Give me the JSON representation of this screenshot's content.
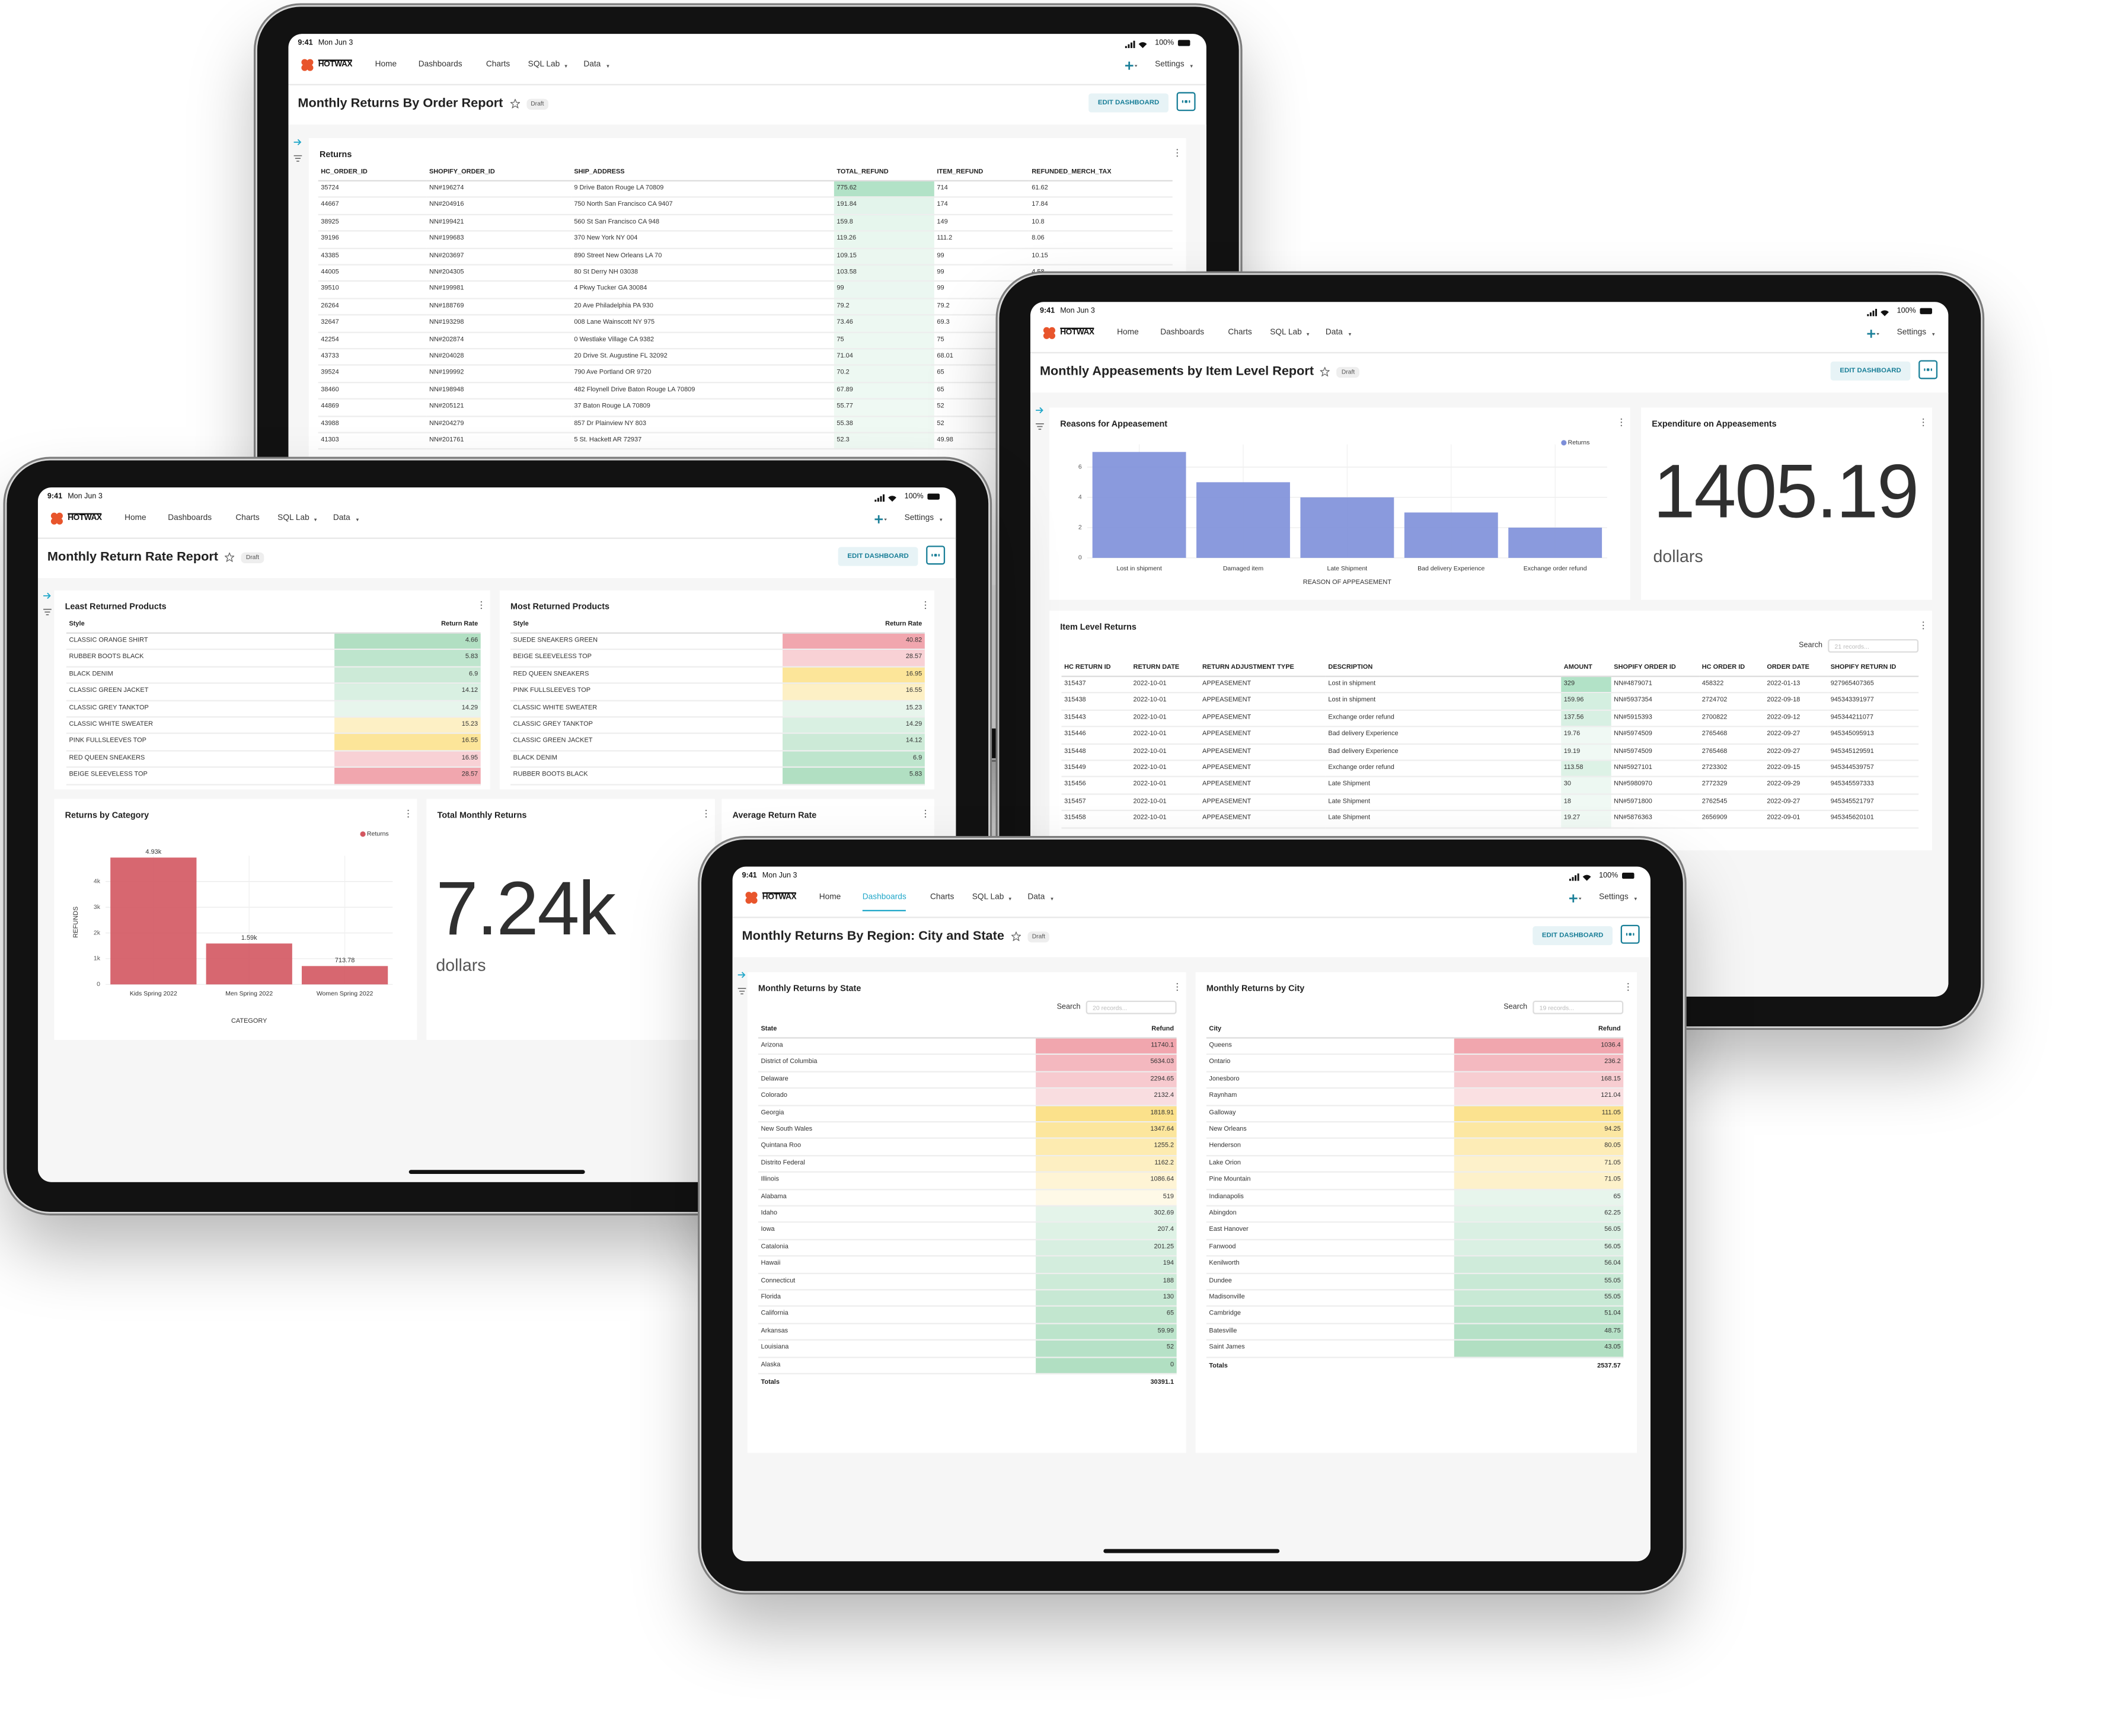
{
  "status": {
    "time": "9:41",
    "date": "Mon Jun 3",
    "battery": "100%"
  },
  "nav": {
    "brand": "HOTWAX",
    "items": [
      "Home",
      "Dashboards",
      "Charts",
      "SQL Lab",
      "Data"
    ],
    "settings": "Settings"
  },
  "badge": "Draft",
  "edit": "EDIT DASHBOARD",
  "dashboards": [
    {
      "title": "Monthly Returns By Order Report",
      "panels": [
        {
          "kind": "table",
          "title": "Returns",
          "columns": [
            "HC_ORDER_ID",
            "SHOPIFY_ORDER_ID",
            "SHIP_ADDRESS",
            "TOTAL_REFUND",
            "ITEM_REFUND",
            "REFUNDED_MERCH_TAX"
          ],
          "heat": "green",
          "heat_column": 3,
          "rows": [
            [
              35724,
              "NN#196274",
              "9 Drive Baton Rouge LA 70809",
              775.62,
              714,
              61.62
            ],
            [
              44667,
              "NN#204916",
              "750 North San Francisco CA 9407",
              191.84,
              174,
              17.84
            ],
            [
              38925,
              "NN#199421",
              "560 St San Francisco CA 948",
              159.8,
              149,
              10.8
            ],
            [
              39196,
              "NN#199683",
              "370 New York NY 004",
              119.26,
              111.2,
              8.06
            ],
            [
              43385,
              "NN#203697",
              "890 Street New Orleans LA 70",
              109.15,
              99,
              10.15
            ],
            [
              44005,
              "NN#204305",
              "80 St Derry NH 03038",
              103.58,
              99,
              4.58
            ],
            [
              39510,
              "NN#199981",
              "4 Pkwy Tucker GA 30084",
              99,
              99,
              null
            ],
            [
              26264,
              "NN#188769",
              "20 Ave Philadelphia PA 930",
              79.2,
              79.2,
              null
            ],
            [
              32647,
              "NN#193298",
              "008 Lane Wainscott NY 975",
              73.46,
              69.3,
              null
            ],
            [
              42254,
              "NN#202874",
              "0 Westlake Village CA 9382",
              75,
              75,
              null
            ],
            [
              43733,
              "NN#204028",
              "20 Drive St. Augustine FL 32092",
              71.04,
              68.01,
              null
            ],
            [
              39524,
              "NN#199992",
              "790 Ave Portland OR 9720",
              70.2,
              65,
              null
            ],
            [
              38460,
              "NN#198948",
              "482 Floynell Drive Baton Rouge LA 70809",
              67.89,
              65,
              null
            ],
            [
              44869,
              "NN#205121",
              "37 Baton Rouge LA 70809",
              55.77,
              52,
              null
            ],
            [
              43988,
              "NN#204279",
              "857 Dr Plainview NY 803",
              55.38,
              52,
              null
            ],
            [
              41303,
              "NN#201761",
              "5 St. Hackett AR 72937",
              52.3,
              49.98,
              null
            ]
          ]
        }
      ]
    },
    {
      "title": "Monthly Appeasements by Item Level Report",
      "panels": [
        {
          "kind": "chart",
          "chart_data": {
            "type": "bar",
            "title": "Reasons for Appeasement",
            "categories": [
              "Lost in shipment",
              "Damaged item",
              "Late Shipment",
              "Bad delivery Experience",
              "Exchange order refund"
            ],
            "series": [
              {
                "name": "Returns",
                "color": "#7d8fd9",
                "values": [
                  7,
                  5,
                  4,
                  3,
                  2
                ]
              }
            ],
            "xlabel": "REASON OF APPEASEMENT",
            "ylim": [
              0,
              7.5
            ],
            "yticks": [
              0,
              2,
              4,
              6
            ],
            "grid": true,
            "legend": "top-right"
          }
        },
        {
          "kind": "number",
          "title": "Expenditure on Appeasements",
          "value": 1405.19,
          "subtitle": "dollars"
        },
        {
          "kind": "table",
          "title": "Item Level Returns",
          "search": {
            "label": "Search",
            "placeholder": "21 records..."
          },
          "columns": [
            "HC RETURN ID",
            "RETURN DATE",
            "RETURN ADJUSTMENT TYPE",
            "DESCRIPTION",
            "AMOUNT",
            "SHOPIFY ORDER ID",
            "HC ORDER ID",
            "ORDER DATE",
            "SHOPIFY RETURN ID"
          ],
          "heat": "green",
          "heat_column": 4,
          "rows": [
            [
              315437,
              "2022-10-01",
              "APPEASEMENT",
              "Lost in shipment",
              329,
              "NN#4879071",
              458322,
              "2022-01-13",
              927965407365
            ],
            [
              315438,
              "2022-10-01",
              "APPEASEMENT",
              "Lost in shipment",
              159.96,
              "NN#5937354",
              2724702,
              "2022-09-18",
              945343391977
            ],
            [
              315443,
              "2022-10-01",
              "APPEASEMENT",
              "Exchange order refund",
              137.56,
              "NN#5915393",
              2700822,
              "2022-09-12",
              945344211077
            ],
            [
              315446,
              "2022-10-01",
              "APPEASEMENT",
              "Bad delivery Experience",
              19.76,
              "NN#5974509",
              2765468,
              "2022-09-27",
              945345095913
            ],
            [
              315448,
              "2022-10-01",
              "APPEASEMENT",
              "Bad delivery Experience",
              19.19,
              "NN#5974509",
              2765468,
              "2022-09-27",
              945345129591
            ],
            [
              315449,
              "2022-10-01",
              "APPEASEMENT",
              "Exchange order refund",
              113.58,
              "NN#5927101",
              2723302,
              "2022-09-15",
              945344539757
            ],
            [
              315456,
              "2022-10-01",
              "APPEASEMENT",
              "Late Shipment",
              30,
              "NN#5980970",
              2772329,
              "2022-09-29",
              945345597333
            ],
            [
              315457,
              "2022-10-01",
              "APPEASEMENT",
              "Late Shipment",
              18,
              "NN#5971800",
              2762545,
              "2022-09-27",
              945345521797
            ],
            [
              315458,
              "2022-10-01",
              "APPEASEMENT",
              "Late Shipment",
              19.27,
              "NN#5876363",
              2656909,
              "2022-09-01",
              945345620101
            ]
          ]
        }
      ]
    },
    {
      "title": "Monthly Return Rate Report",
      "panels": [
        {
          "kind": "table",
          "title": "Least Returned Products",
          "columns": [
            "Style",
            "Return Rate"
          ],
          "heat": "rank",
          "heat_column": 1,
          "rows": [
            [
              "CLASSIC ORANGE SHIRT",
              4.66
            ],
            [
              "RUBBER BOOTS BLACK",
              5.83
            ],
            [
              "BLACK DENIM",
              6.9
            ],
            [
              "CLASSIC GREEN JACKET",
              14.12
            ],
            [
              "CLASSIC GREY TANKTOP",
              14.29
            ],
            [
              "CLASSIC WHITE SWEATER",
              15.23
            ],
            [
              "PINK FULLSLEEVES TOP",
              16.55
            ],
            [
              "RED QUEEN SNEAKERS",
              16.95
            ],
            [
              "BEIGE SLEEVELESS TOP",
              28.57
            ]
          ]
        },
        {
          "kind": "table",
          "title": "Most Returned Products",
          "columns": [
            "Style",
            "Return Rate"
          ],
          "heat": "rank",
          "heat_column": 1,
          "rows": [
            [
              "SUEDE SNEAKERS GREEN",
              40.82
            ],
            [
              "BEIGE SLEEVELESS TOP",
              28.57
            ],
            [
              "RED QUEEN SNEAKERS",
              16.95
            ],
            [
              "PINK FULLSLEEVES TOP",
              16.55
            ],
            [
              "CLASSIC WHITE SWEATER",
              15.23
            ],
            [
              "CLASSIC GREY TANKTOP",
              14.29
            ],
            [
              "CLASSIC GREEN JACKET",
              14.12
            ],
            [
              "BLACK DENIM",
              6.9
            ],
            [
              "RUBBER BOOTS BLACK",
              5.83
            ]
          ]
        },
        {
          "kind": "chart",
          "chart_data": {
            "type": "bar",
            "title": "Returns by Category",
            "categories": [
              "Kids Spring 2022",
              "Men Spring 2022",
              "Women Spring 2022"
            ],
            "series": [
              {
                "name": "Returns",
                "color": "#d35760",
                "values": [
                  4930,
                  1590,
                  713.78
                ],
                "value_labels": [
                  "4.93k",
                  "1.59k",
                  "713.78"
                ]
              }
            ],
            "xlabel": "CATEGORY",
            "ylabel": "REFUNDS",
            "ylim": [
              0,
              5000
            ],
            "yticks": [
              0,
              {
                "value": 1000,
                "label": "1k"
              },
              {
                "value": 2000,
                "label": "2k"
              },
              {
                "value": 3000,
                "label": "3k"
              },
              {
                "value": 4000,
                "label": "4k"
              }
            ],
            "grid": true,
            "legend": "top-right"
          }
        },
        {
          "kind": "number",
          "title": "Total Monthly Returns",
          "value": "7.24k",
          "subtitle": "dollars"
        },
        {
          "kind": "number",
          "title": "Average Return Rate"
        }
      ]
    },
    {
      "title": "Monthly Returns By Region: City and State",
      "active_nav": 1,
      "panels": [
        {
          "kind": "table",
          "title": "Monthly Returns by State",
          "search": {
            "label": "Search",
            "placeholder": "20 records..."
          },
          "columns": [
            "State",
            "Refund"
          ],
          "heat": "rank",
          "heat_column": 1,
          "rows": [
            [
              "Arizona",
              11740.1
            ],
            [
              "District of Columbia",
              5634.03
            ],
            [
              "Delaware",
              2294.65
            ],
            [
              "Colorado",
              2132.4
            ],
            [
              "Georgia",
              1818.91
            ],
            [
              "New South Wales",
              1347.64
            ],
            [
              "Quintana Roo",
              1255.2
            ],
            [
              "Distrito Federal",
              1162.2
            ],
            [
              "Illinois",
              1086.64
            ],
            [
              "Alabama",
              519
            ],
            [
              "Idaho",
              302.69
            ],
            [
              "Iowa",
              207.4
            ],
            [
              "Catalonia",
              201.25
            ],
            [
              "Hawaii",
              194
            ],
            [
              "Connecticut",
              188
            ],
            [
              "Florida",
              130
            ],
            [
              "California",
              65
            ],
            [
              "Arkansas",
              59.99
            ],
            [
              "Louisiana",
              52
            ],
            [
              "Alaska",
              0
            ]
          ],
          "totals": [
            "Totals",
            30391.1
          ]
        },
        {
          "kind": "table",
          "title": "Monthly Returns by City",
          "search": {
            "label": "Search",
            "placeholder": "19 records..."
          },
          "columns": [
            "City",
            "Refund"
          ],
          "heat": "rank",
          "heat_column": 1,
          "rows": [
            [
              "Queens",
              1036.4
            ],
            [
              "Ontario",
              236.2
            ],
            [
              "Jonesboro",
              168.15
            ],
            [
              "Raynham",
              121.04
            ],
            [
              "Galloway",
              111.05
            ],
            [
              "New Orleans",
              94.25
            ],
            [
              "Henderson",
              80.05
            ],
            [
              "Lake Orion",
              71.05
            ],
            [
              "Pine Mountain",
              71.05
            ],
            [
              "Indianapolis",
              65
            ],
            [
              "Abingdon",
              62.25
            ],
            [
              "East Hanover",
              56.05
            ],
            [
              "Fanwood",
              56.05
            ],
            [
              "Kenilworth",
              56.04
            ],
            [
              "Dundee",
              55.05
            ],
            [
              "Madisonville",
              55.05
            ],
            [
              "Cambridge",
              51.04
            ],
            [
              "Batesville",
              48.75
            ],
            [
              "Saint James",
              43.05
            ]
          ],
          "totals": [
            "Totals",
            2537.57
          ]
        }
      ]
    }
  ]
}
